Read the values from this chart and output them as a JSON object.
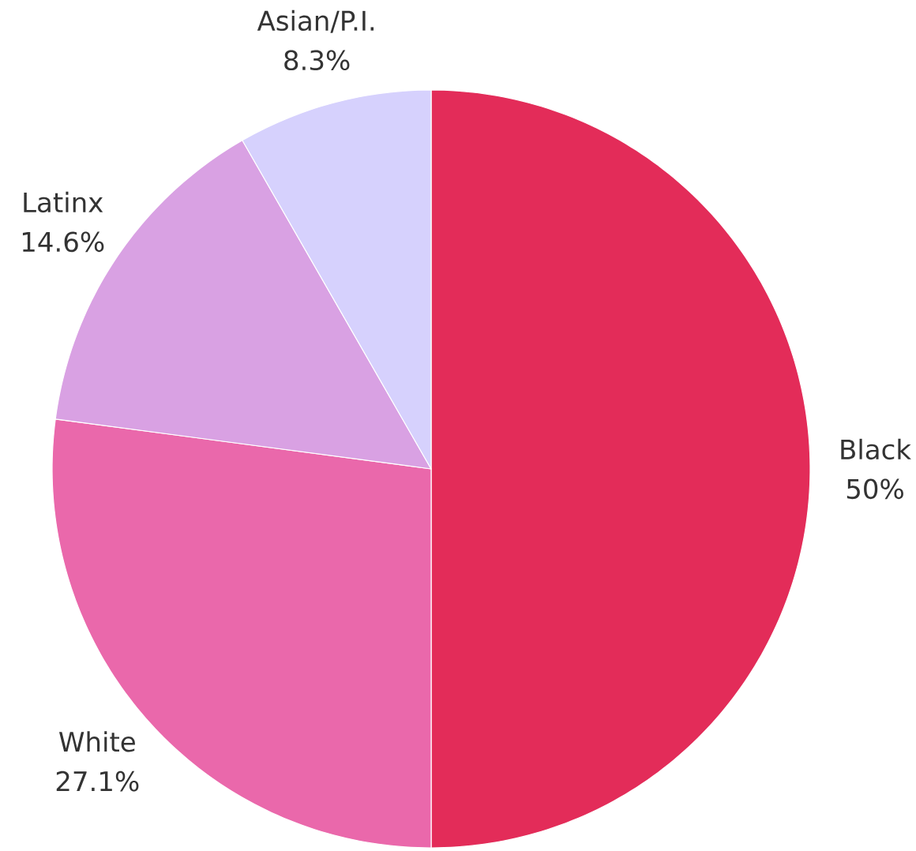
{
  "chart_data": {
    "type": "pie",
    "categories": [
      "Black",
      "White",
      "Latinx",
      "Asian/P.I."
    ],
    "values": [
      50,
      27.1,
      14.6,
      8.3
    ],
    "colors": [
      "#e32c59",
      "#ea68ab",
      "#d9a1e3",
      "#d6d1fd"
    ],
    "value_labels": [
      "50%",
      "27.1%",
      "14.6%",
      "8.3%"
    ]
  }
}
